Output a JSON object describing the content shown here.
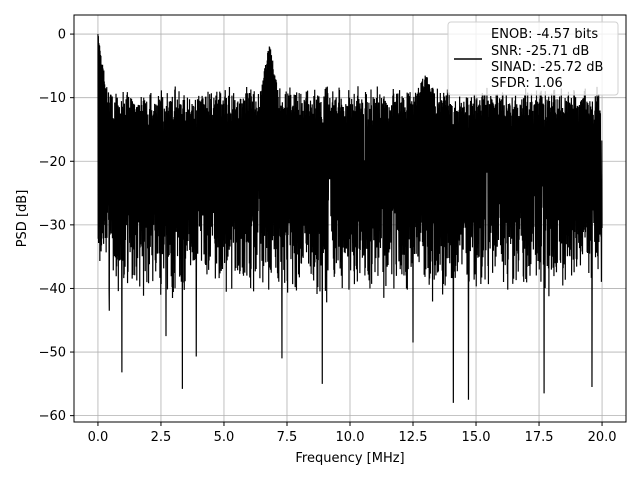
{
  "chart_data": {
    "type": "line",
    "title": "",
    "xlabel": "Frequency [MHz]",
    "ylabel": "PSD [dB]",
    "xlim": [
      -0.95,
      20.95
    ],
    "ylim": [
      -61,
      3
    ],
    "x_ticks": [
      0.0,
      2.5,
      5.0,
      7.5,
      10.0,
      12.5,
      15.0,
      17.5,
      20.0
    ],
    "x_tick_labels": [
      "0.0",
      "2.5",
      "5.0",
      "7.5",
      "10.0",
      "12.5",
      "15.0",
      "17.5",
      "20.0"
    ],
    "y_ticks": [
      0,
      -10,
      -20,
      -30,
      -40,
      -50,
      -60
    ],
    "y_tick_labels": [
      "0",
      "−10",
      "−20",
      "−30",
      "−40",
      "−50",
      "−60"
    ],
    "grid": true,
    "line_color": "#000000",
    "legend_position": "top-right",
    "legend_lines": [
      "ENOB: -4.57 bits",
      "SNR: -25.71 dB",
      "SINAD: -25.72 dB",
      "SFDR: 1.06"
    ],
    "series": [
      {
        "x_range": [
          0.0,
          20.0
        ],
        "noise_floor_db": -22,
        "upper_envelope_db": -10,
        "lower_envelope_db": -40,
        "peaks": [
          {
            "x": 0.0,
            "y": 0.0
          },
          {
            "x": 6.8,
            "y": -2.2
          },
          {
            "x": 13.0,
            "y": -7.0
          }
        ],
        "dips": [
          {
            "x": 0.45,
            "y": -43.5
          },
          {
            "x": 0.95,
            "y": -53.2
          },
          {
            "x": 2.7,
            "y": -47.5
          },
          {
            "x": 3.35,
            "y": -55.8
          },
          {
            "x": 3.9,
            "y": -50.7
          },
          {
            "x": 7.3,
            "y": -51.0
          },
          {
            "x": 8.9,
            "y": -55.0
          },
          {
            "x": 12.5,
            "y": -48.5
          },
          {
            "x": 14.1,
            "y": -58.0
          },
          {
            "x": 14.7,
            "y": -57.5
          },
          {
            "x": 17.7,
            "y": -56.5
          },
          {
            "x": 19.6,
            "y": -55.5
          }
        ]
      }
    ]
  }
}
